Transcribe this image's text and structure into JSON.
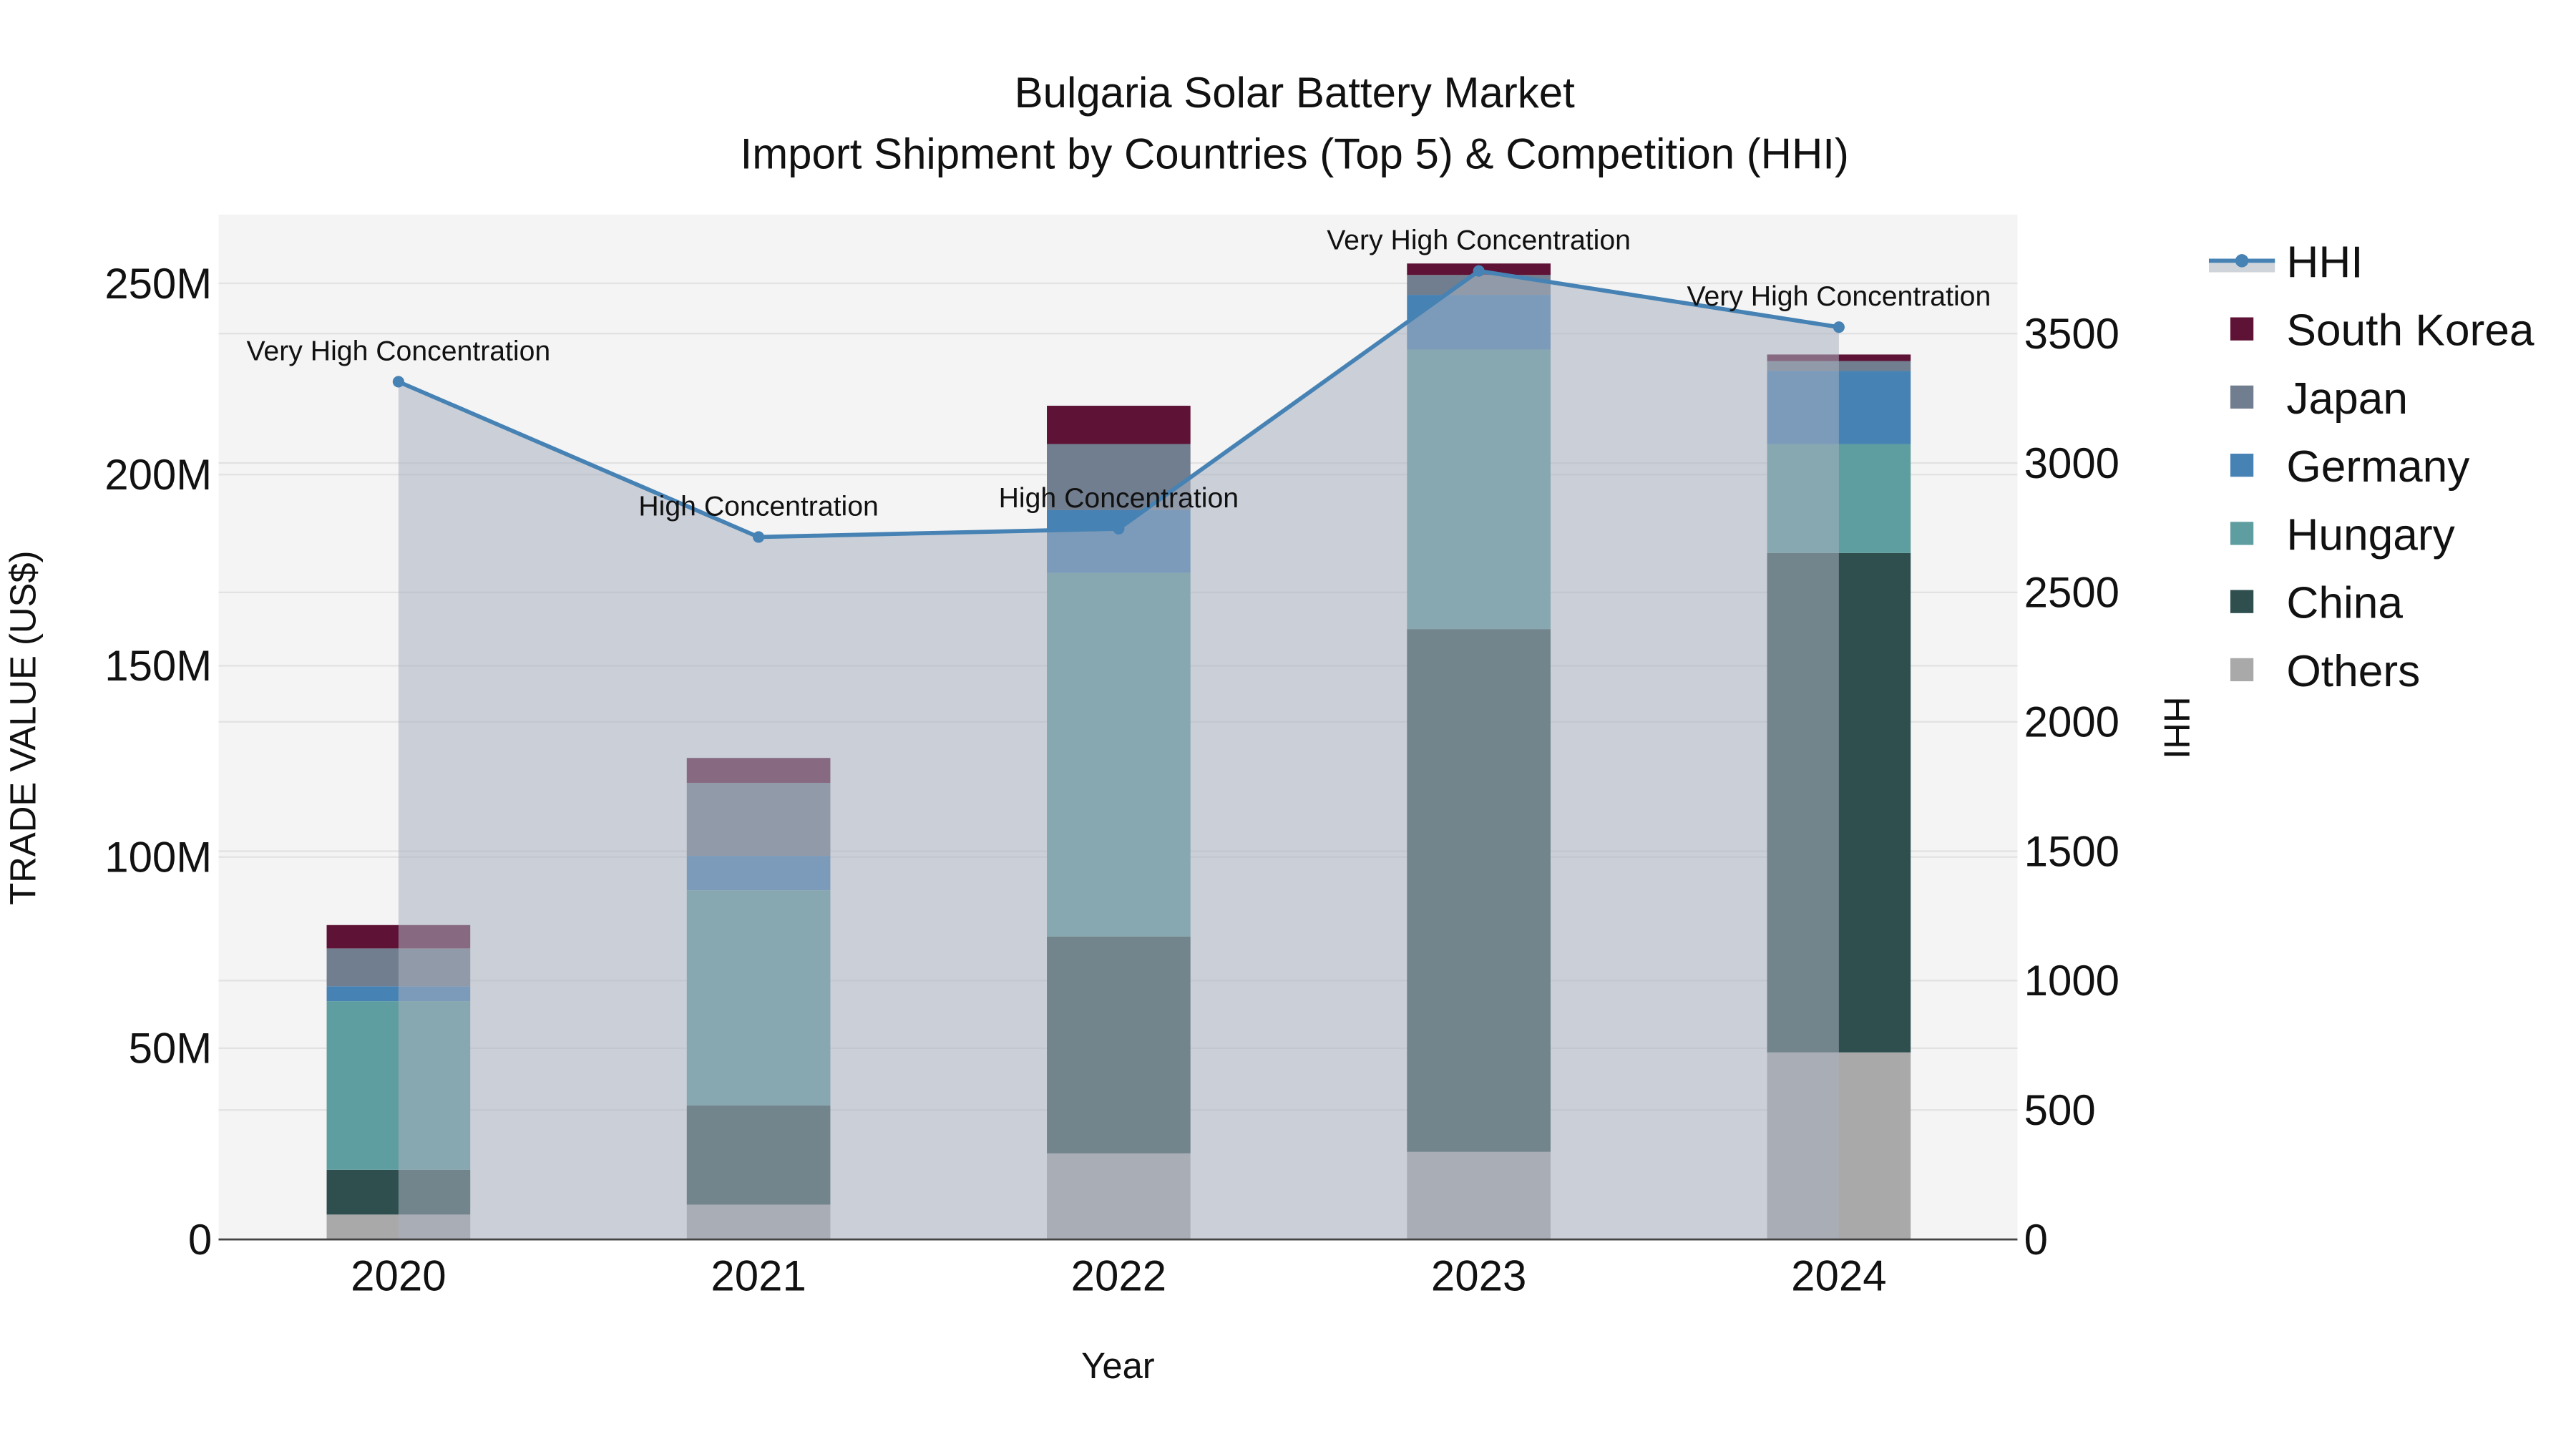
{
  "chart_data": {
    "type": "bar",
    "stacked": true,
    "title": "Bulgaria Solar Battery Market",
    "subtitle": "Import Shipment by Countries (Top 5) & Competition (HHI)",
    "xlabel": "Year",
    "ylabel": "TRADE VALUE (US$)",
    "y2label": "HHI",
    "categories": [
      "2020",
      "2021",
      "2022",
      "2023",
      "2024"
    ],
    "ylim": [
      0,
      268
    ],
    "y_unit": "M",
    "y_ticks": [
      0,
      50,
      100,
      150,
      200,
      250
    ],
    "y_tick_labels": [
      "0",
      "50M",
      "100M",
      "150M",
      "200M",
      "250M"
    ],
    "y2lim": [
      0,
      3960
    ],
    "y2_ticks": [
      0,
      500,
      1000,
      1500,
      2000,
      2500,
      3000,
      3500
    ],
    "y2_tick_labels": [
      "0",
      "500",
      "1000",
      "1500",
      "2000",
      "2500",
      "3000",
      "3500"
    ],
    "grid": true,
    "legend_position": "right",
    "series": [
      {
        "name": "Others",
        "color": "#a9a9a9",
        "values": [
          6.5,
          9.1,
          22.5,
          22.9,
          48.9
        ]
      },
      {
        "name": "China",
        "color": "#2f4f4f",
        "values": [
          11.7,
          25.9,
          56.7,
          136.7,
          130.6
        ]
      },
      {
        "name": "Hungary",
        "color": "#5f9ea0",
        "values": [
          44.1,
          56.3,
          95.1,
          73.1,
          28.5
        ]
      },
      {
        "name": "Germany",
        "color": "#4682b4",
        "values": [
          3.9,
          9.0,
          16.4,
          14.3,
          19.1
        ]
      },
      {
        "name": "Japan",
        "color": "#717e8f",
        "values": [
          9.9,
          19.1,
          17.3,
          5.2,
          2.6
        ]
      },
      {
        "name": "South Korea",
        "color": "#5e1235",
        "values": [
          6.1,
          6.5,
          10.0,
          3.0,
          1.7
        ]
      }
    ],
    "line_series": {
      "name": "HHI",
      "color": "#4682b4",
      "values": [
        3314,
        2714,
        2746,
        3742,
        3525
      ],
      "annotations": [
        "Very High Concentration",
        "High Concentration",
        "High Concentration",
        "Very High Concentration",
        "Very High Concentration"
      ]
    },
    "legend_order": [
      "HHI",
      "South Korea",
      "Japan",
      "Germany",
      "Hungary",
      "China",
      "Others"
    ]
  }
}
